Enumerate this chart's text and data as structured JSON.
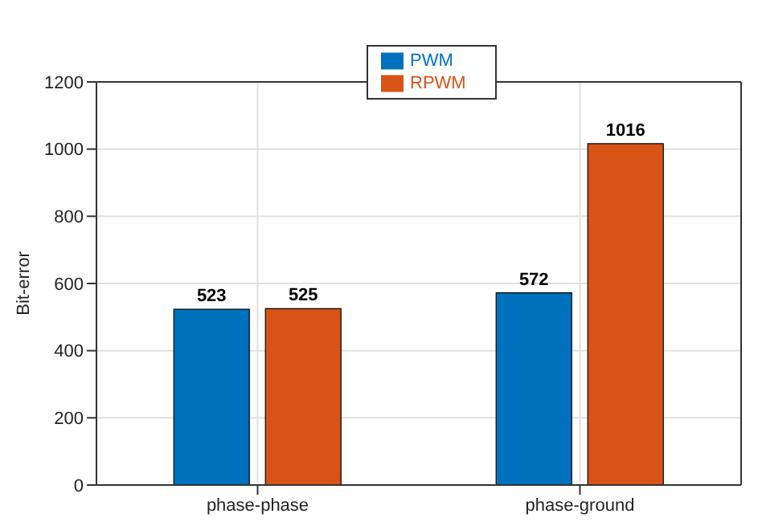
{
  "chart_data": {
    "type": "bar",
    "ylabel": "Bit-error",
    "categories": [
      "phase-phase",
      "phase-ground"
    ],
    "series": [
      {
        "name": "PWM",
        "color": "#0072bd",
        "values": [
          523,
          572
        ]
      },
      {
        "name": "RPWM",
        "color": "#d95319",
        "values": [
          525,
          1016
        ]
      }
    ],
    "ylim": [
      0,
      1200
    ],
    "yticks": [
      0,
      200,
      400,
      600,
      800,
      1000,
      1200
    ],
    "grid": true,
    "legend": "top",
    "data_labels": true
  }
}
